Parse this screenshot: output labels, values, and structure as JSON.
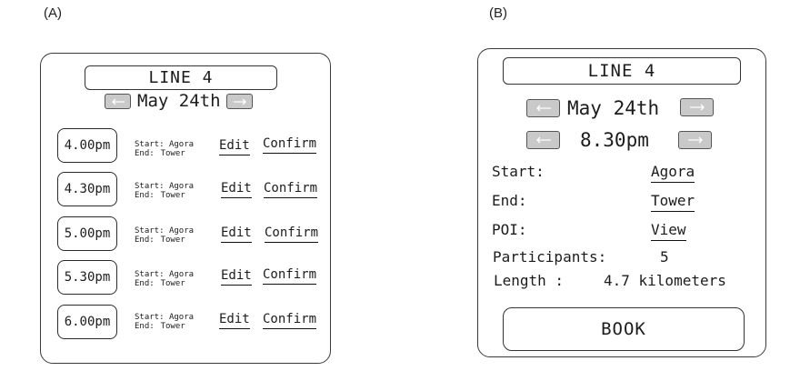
{
  "panel_a": {
    "label": "(A)",
    "line_title": "LINE 4",
    "date": "May 24th",
    "prev_icon": "arrow-left-icon",
    "next_icon": "arrow-right-icon",
    "rides": [
      {
        "time": "4.00pm",
        "start_label": "Start:",
        "start_value": "Agora",
        "end_label": "End:",
        "end_value": "Tower",
        "edit": "Edit",
        "confirm": "Confirm"
      },
      {
        "time": "4.30pm",
        "start_label": "Start:",
        "start_value": "Agora",
        "end_label": "End:",
        "end_value": "Tower",
        "edit": "Edit",
        "confirm": "Confirm"
      },
      {
        "time": "5.00pm",
        "start_label": "Start:",
        "start_value": "Agora",
        "end_label": "End:",
        "end_value": "Tower",
        "edit": "Edit",
        "confirm": "Confirm"
      },
      {
        "time": "5.30pm",
        "start_label": "Start:",
        "start_value": "Agora",
        "end_label": "End:",
        "end_value": "Tower",
        "edit": "Edit",
        "confirm": "Confirm"
      },
      {
        "time": "6.00pm",
        "start_label": "Start:",
        "start_value": "Agora",
        "end_label": "End:",
        "end_value": "Tower",
        "edit": "Edit",
        "confirm": "Confirm"
      }
    ]
  },
  "panel_b": {
    "label": "(B)",
    "line_title": "LINE 4",
    "date": "May 24th",
    "time": "8.30pm",
    "start_label": "Start:",
    "start_value": "Agora",
    "end_label": "End:",
    "end_value": "Tower",
    "poi_label": "POI:",
    "poi_value": "View",
    "participants_label": "Participants:",
    "participants_value": "5",
    "length_label": "Length :",
    "length_value": "4.7 kilometers",
    "book_label": "BOOK"
  }
}
